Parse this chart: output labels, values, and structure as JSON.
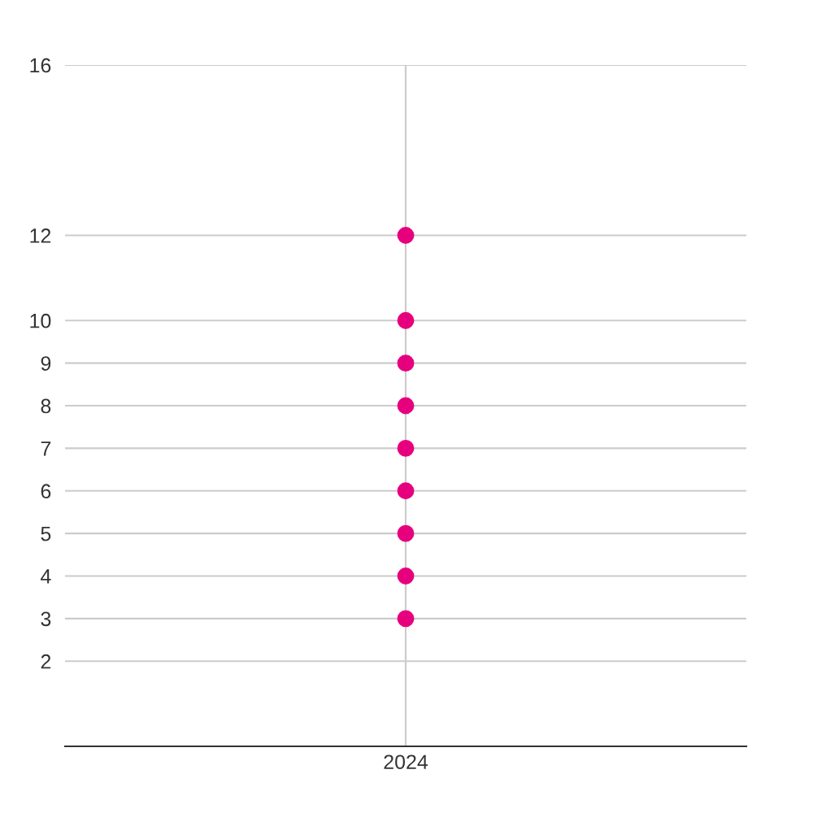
{
  "chart_data": {
    "type": "scatter",
    "categories": [
      "2024"
    ],
    "series": [
      {
        "color": "#e6007e",
        "values": [
          12
        ]
      },
      {
        "color": "#e6007e",
        "values": [
          10
        ]
      },
      {
        "color": "#e6007e",
        "values": [
          9
        ]
      },
      {
        "color": "#e6007e",
        "values": [
          8
        ]
      },
      {
        "color": "#e6007e",
        "values": [
          7
        ]
      },
      {
        "color": "#e6007e",
        "values": [
          6
        ]
      },
      {
        "color": "#e6007e",
        "values": [
          5
        ]
      },
      {
        "color": "#e6007e",
        "values": [
          4
        ]
      },
      {
        "color": "#e6007e",
        "values": [
          3
        ]
      }
    ],
    "ylim": [
      0,
      16
    ],
    "yticks": [
      2,
      3,
      4,
      5,
      6,
      7,
      8,
      9,
      10,
      12,
      16
    ],
    "grid": true,
    "marker": "circle"
  }
}
